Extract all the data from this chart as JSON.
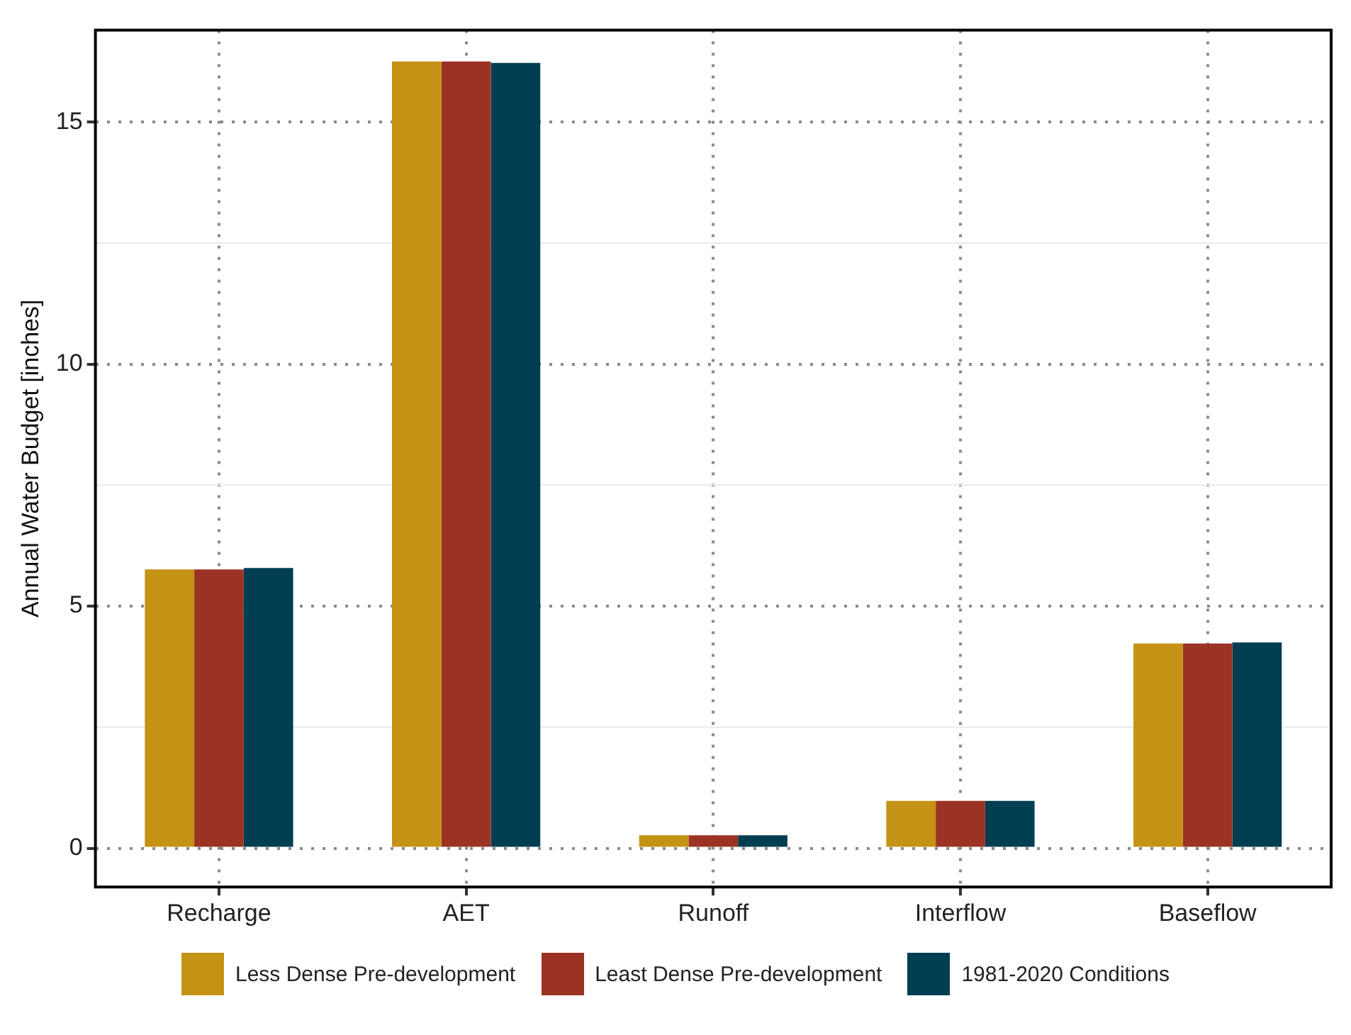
{
  "chart_data": {
    "type": "bar",
    "ylabel": "Annual Water Budget [inches]",
    "categories": [
      "Recharge",
      "AET",
      "Runoff",
      "Interflow",
      "Baseflow"
    ],
    "series": [
      {
        "name": "Less Dense Pre-development",
        "color": "#c49214",
        "values": [
          5.76,
          16.25,
          0.27,
          0.98,
          4.23
        ]
      },
      {
        "name": "Least Dense Pre-development",
        "color": "#9a3324",
        "values": [
          5.76,
          16.25,
          0.27,
          0.98,
          4.23
        ]
      },
      {
        "name": "1981-2020 Conditions",
        "color": "#003e51",
        "values": [
          5.79,
          16.22,
          0.27,
          0.98,
          4.25
        ]
      }
    ],
    "ylim": [
      -0.8,
      16.9
    ],
    "yticks": [
      0,
      5,
      10,
      15
    ],
    "grid": true,
    "legend": "bottom"
  }
}
